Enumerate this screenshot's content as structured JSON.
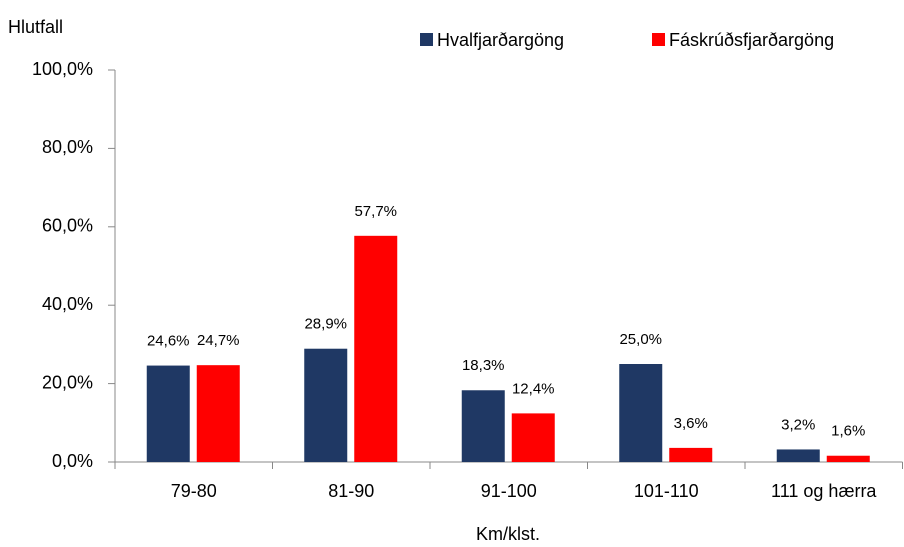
{
  "chart_data": {
    "type": "bar",
    "y_axis_label": "Hlutfall",
    "x_axis_label": "Km/klst.",
    "categories": [
      "79-80",
      "81-90",
      "91-100",
      "101-110",
      "111 og hærra"
    ],
    "series": [
      {
        "name": "Hvalfjarðargöng",
        "color": "#1f3864",
        "values": [
          24.6,
          28.9,
          18.3,
          25.0,
          3.2
        ],
        "value_labels": [
          "24,6%",
          "28,9%",
          "18,3%",
          "25,0%",
          "3,2%"
        ]
      },
      {
        "name": "Fáskrúðsfjarðargöng",
        "color": "#ff0000",
        "values": [
          24.7,
          57.7,
          12.4,
          3.6,
          1.6
        ],
        "value_labels": [
          "24,7%",
          "57,7%",
          "12,4%",
          "3,6%",
          "1,6%"
        ]
      }
    ],
    "ylim": [
      0,
      100
    ],
    "yticks": [
      {
        "value": 0,
        "label": "0,0%"
      },
      {
        "value": 20,
        "label": "20,0%"
      },
      {
        "value": 40,
        "label": "40,0%"
      },
      {
        "value": 60,
        "label": "60,0%"
      },
      {
        "value": 80,
        "label": "80,0%"
      },
      {
        "value": 100,
        "label": "100,0%"
      }
    ],
    "legend": "top"
  }
}
